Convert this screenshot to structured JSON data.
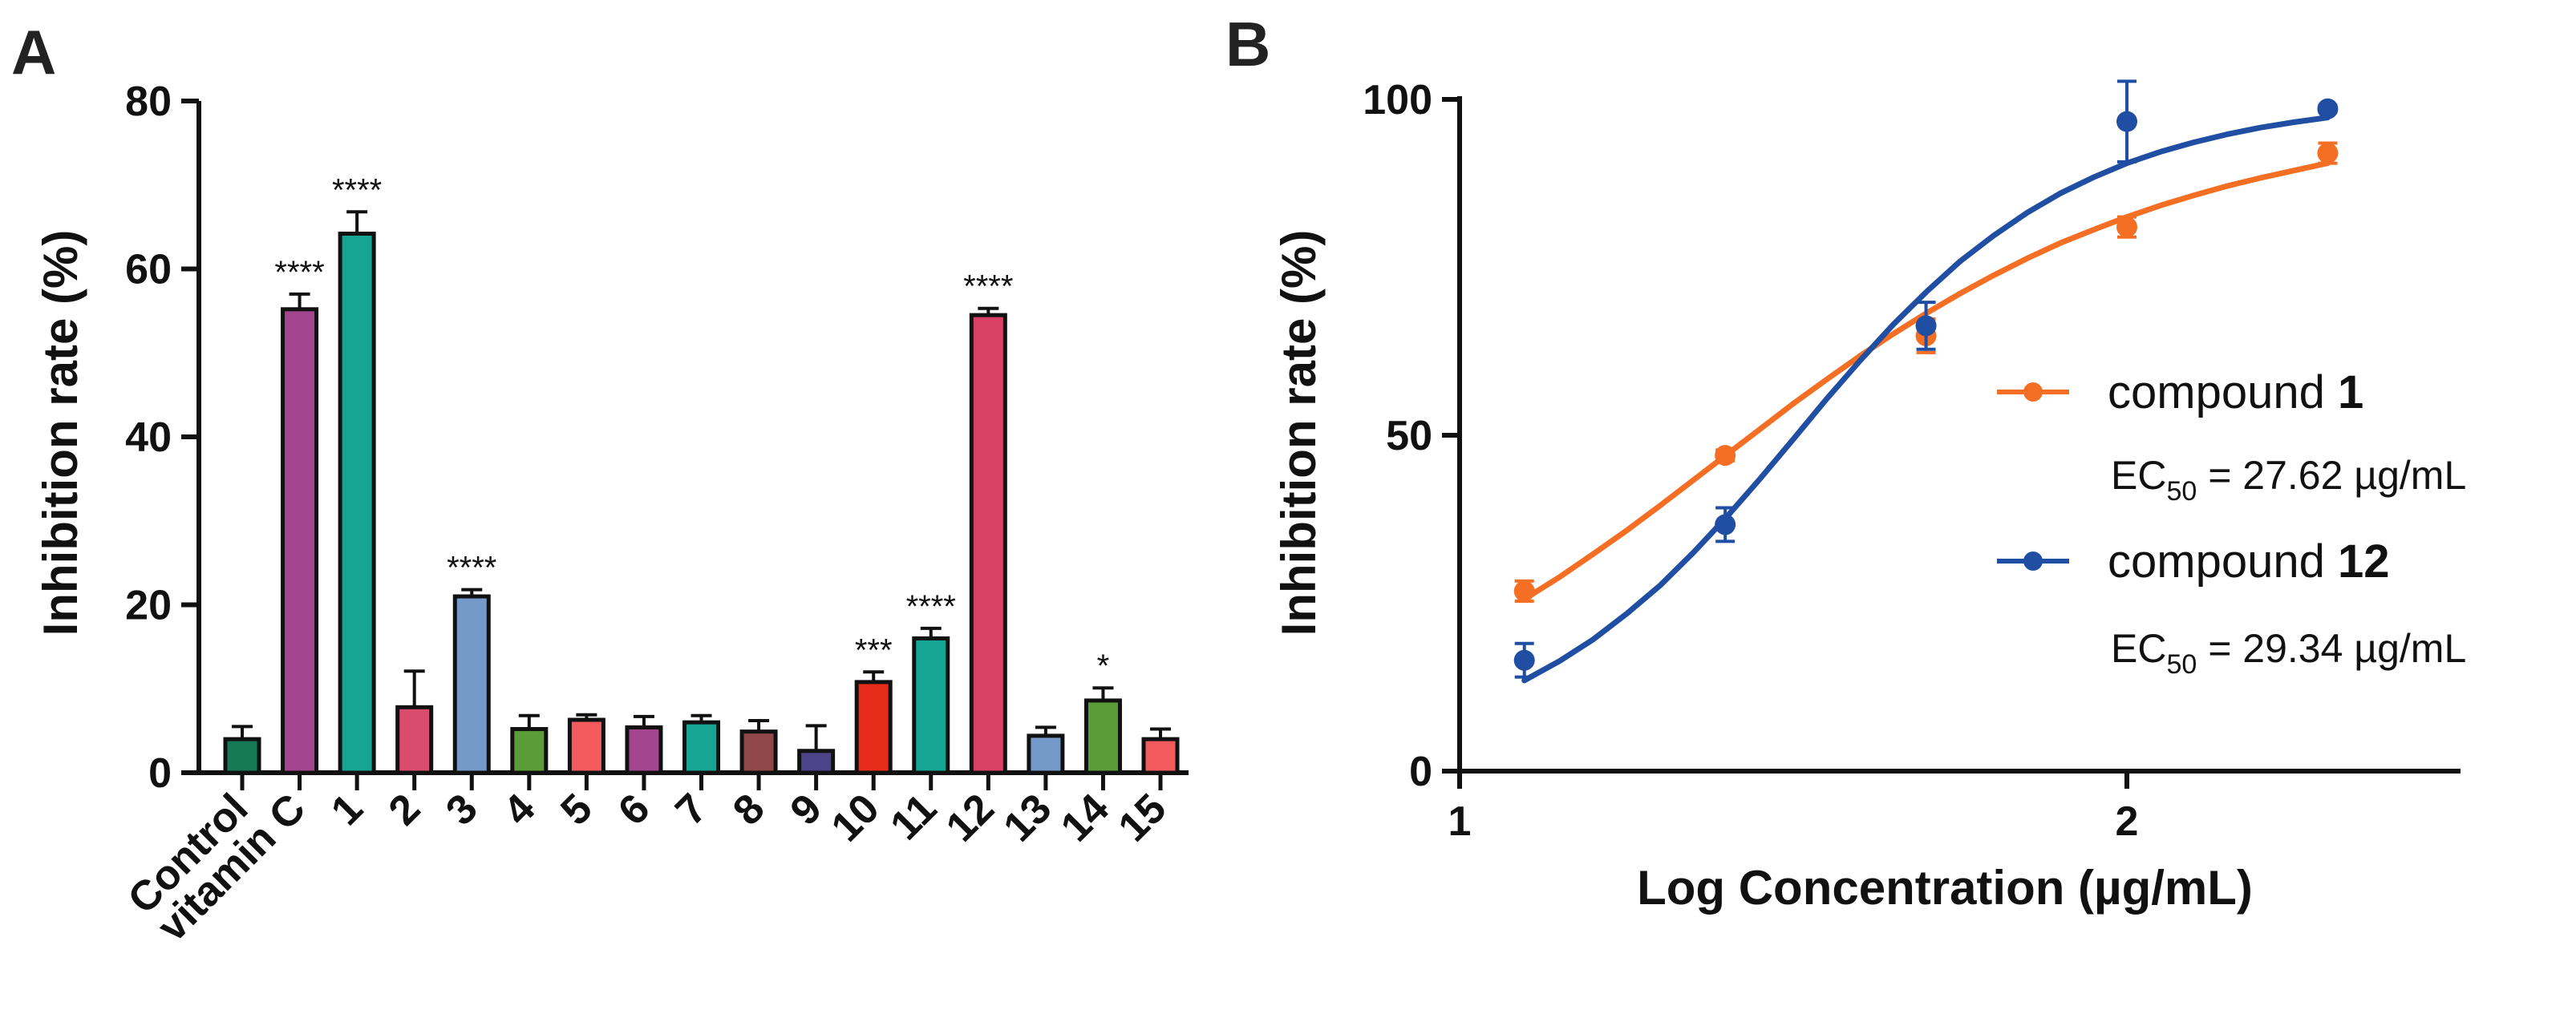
{
  "panels": {
    "a": {
      "letter": "A"
    },
    "b": {
      "letter": "B"
    }
  },
  "chart_data": [
    {
      "panel": "A",
      "type": "bar",
      "title": "",
      "xlabel": "",
      "ylabel": "Inhibition rate (%)",
      "ylim": [
        0,
        80
      ],
      "yticks": [
        0,
        20,
        40,
        60,
        80
      ],
      "categories": [
        "Control",
        "vitamin C",
        "1",
        "2",
        "3",
        "4",
        "5",
        "6",
        "7",
        "8",
        "9",
        "10",
        "11",
        "12",
        "13",
        "14",
        "15"
      ],
      "values": [
        4.0,
        55.2,
        64.2,
        7.8,
        21.0,
        5.2,
        6.3,
        5.4,
        6.0,
        4.9,
        2.6,
        10.8,
        16.0,
        54.5,
        4.4,
        8.6,
        4.0
      ],
      "errors": [
        1.5,
        1.8,
        2.6,
        4.3,
        0.8,
        1.6,
        0.6,
        1.3,
        0.8,
        1.3,
        3.0,
        1.2,
        1.2,
        0.8,
        1.0,
        1.5,
        1.2
      ],
      "significance": [
        "",
        "****",
        "****",
        "",
        "****",
        "",
        "",
        "",
        "",
        "",
        "",
        "***",
        "****",
        "****",
        "",
        "*",
        ""
      ],
      "colors": [
        "#157a55",
        "#a4468f",
        "#16a592",
        "#d94c6d",
        "#7599c9",
        "#5a9c38",
        "#f45b5e",
        "#a4468f",
        "#16a592",
        "#8f4747",
        "#4c438a",
        "#e82c1c",
        "#16a592",
        "#d94164",
        "#7599c9",
        "#5a9c38",
        "#f45b5e"
      ]
    },
    {
      "panel": "B",
      "type": "scatter",
      "title": "",
      "xlabel": "Log Concentration (µg/mL)",
      "ylabel": "Inhibition rate (%)",
      "xlim": [
        1.0,
        2.5
      ],
      "ylim": [
        0,
        100
      ],
      "xticks": [
        1,
        2
      ],
      "yticks": [
        0,
        50,
        100
      ],
      "series": [
        {
          "name": "compound ",
          "name_bold": "1",
          "color": "#f46f23",
          "x": [
            1.097,
            1.398,
            1.699,
            2.0,
            2.301
          ],
          "y": [
            26.8,
            47.0,
            64.8,
            81.0,
            92.0
          ],
          "err": [
            1.5,
            0.8,
            2.5,
            1.5,
            1.5
          ],
          "fit_x": [
            1.097,
            1.15,
            1.2,
            1.25,
            1.3,
            1.35,
            1.4,
            1.45,
            1.5,
            1.55,
            1.6,
            1.65,
            1.7,
            1.75,
            1.8,
            1.85,
            1.9,
            1.95,
            2.0,
            2.05,
            2.1,
            2.15,
            2.2,
            2.25,
            2.301
          ],
          "fit_y": [
            25.6,
            28.9,
            32.3,
            35.8,
            39.5,
            43.3,
            47.1,
            50.9,
            54.7,
            58.3,
            61.8,
            65.1,
            68.2,
            71.1,
            73.8,
            76.3,
            78.6,
            80.6,
            82.5,
            84.2,
            85.7,
            87.1,
            88.3,
            89.4,
            90.5
          ],
          "ec50_prefix": "EC",
          "ec50_sub": "50",
          "ec50_value": " = 27.62 µg/mL"
        },
        {
          "name": "compound ",
          "name_bold": "12",
          "color": "#1f4ea3",
          "x": [
            1.097,
            1.398,
            1.699,
            2.0,
            2.301
          ],
          "y": [
            16.5,
            36.7,
            66.3,
            96.7,
            98.6
          ],
          "err": [
            2.5,
            2.5,
            3.5,
            6.0,
            0.5
          ],
          "fit_x": [
            1.097,
            1.15,
            1.2,
            1.25,
            1.3,
            1.35,
            1.4,
            1.45,
            1.5,
            1.55,
            1.6,
            1.65,
            1.7,
            1.75,
            1.8,
            1.85,
            1.9,
            1.95,
            2.0,
            2.05,
            2.1,
            2.15,
            2.2,
            2.25,
            2.301
          ],
          "fit_y": [
            13.5,
            16.4,
            19.6,
            23.4,
            27.6,
            32.5,
            37.8,
            43.5,
            49.4,
            55.4,
            61.1,
            66.5,
            71.4,
            75.9,
            79.7,
            83.1,
            86.0,
            88.4,
            90.5,
            92.2,
            93.6,
            94.8,
            95.8,
            96.6,
            97.3
          ],
          "ec50_prefix": "EC",
          "ec50_sub": "50",
          "ec50_value": " = 29.34 µg/mL"
        }
      ]
    }
  ]
}
